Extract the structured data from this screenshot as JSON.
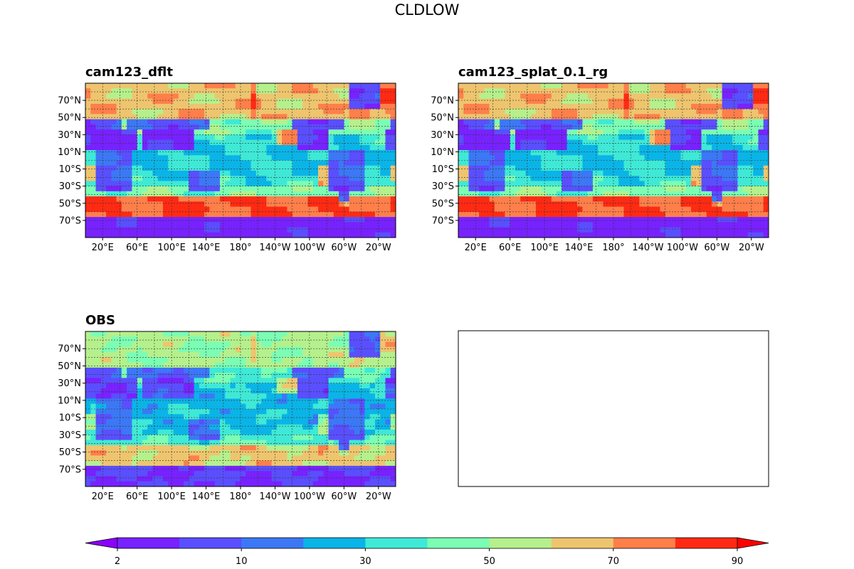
{
  "figure": {
    "title": "CLDLOW"
  },
  "panels": [
    {
      "title": "cam123_dflt",
      "field": "model"
    },
    {
      "title": "cam123_splat_0.1_rg",
      "field": "model"
    },
    {
      "title": "OBS",
      "field": "obs"
    },
    {
      "title": "",
      "field": "empty"
    }
  ],
  "lat_ticks": [
    "70°N",
    "50°N",
    "30°N",
    "10°N",
    "10°S",
    "30°S",
    "50°S",
    "70°S"
  ],
  "lon_ticks": [
    "20°E",
    "60°E",
    "100°E",
    "140°E",
    "180°",
    "140°W",
    "100°W",
    "60°W",
    "20°W"
  ],
  "colorbar": {
    "levels": [
      0,
      10,
      20,
      30,
      40,
      50,
      60,
      70,
      80,
      90,
      100
    ],
    "tick_labels": [
      "2",
      "10",
      "30",
      "50",
      "70",
      "90"
    ],
    "extend": "both",
    "colors": [
      "#8b00ff",
      "#7722ff",
      "#5a4fff",
      "#3c78f5",
      "#0bb4e6",
      "#3fe9d6",
      "#7cfdb4",
      "#b5f08c",
      "#eec56e",
      "#ff7f4a",
      "#ff2a13",
      "#ff0000"
    ]
  },
  "chart_data": {
    "type": "heatmap",
    "title": "CLDLOW",
    "projection": "PlateCarree, central longitude 180°",
    "lat_range": [
      -90,
      90
    ],
    "lon_range": [
      0,
      360
    ],
    "grid": true,
    "colorbar_placement": "bottom",
    "panels": [
      "cam123_dflt",
      "cam123_splat_0.1_rg",
      "OBS"
    ]
  }
}
